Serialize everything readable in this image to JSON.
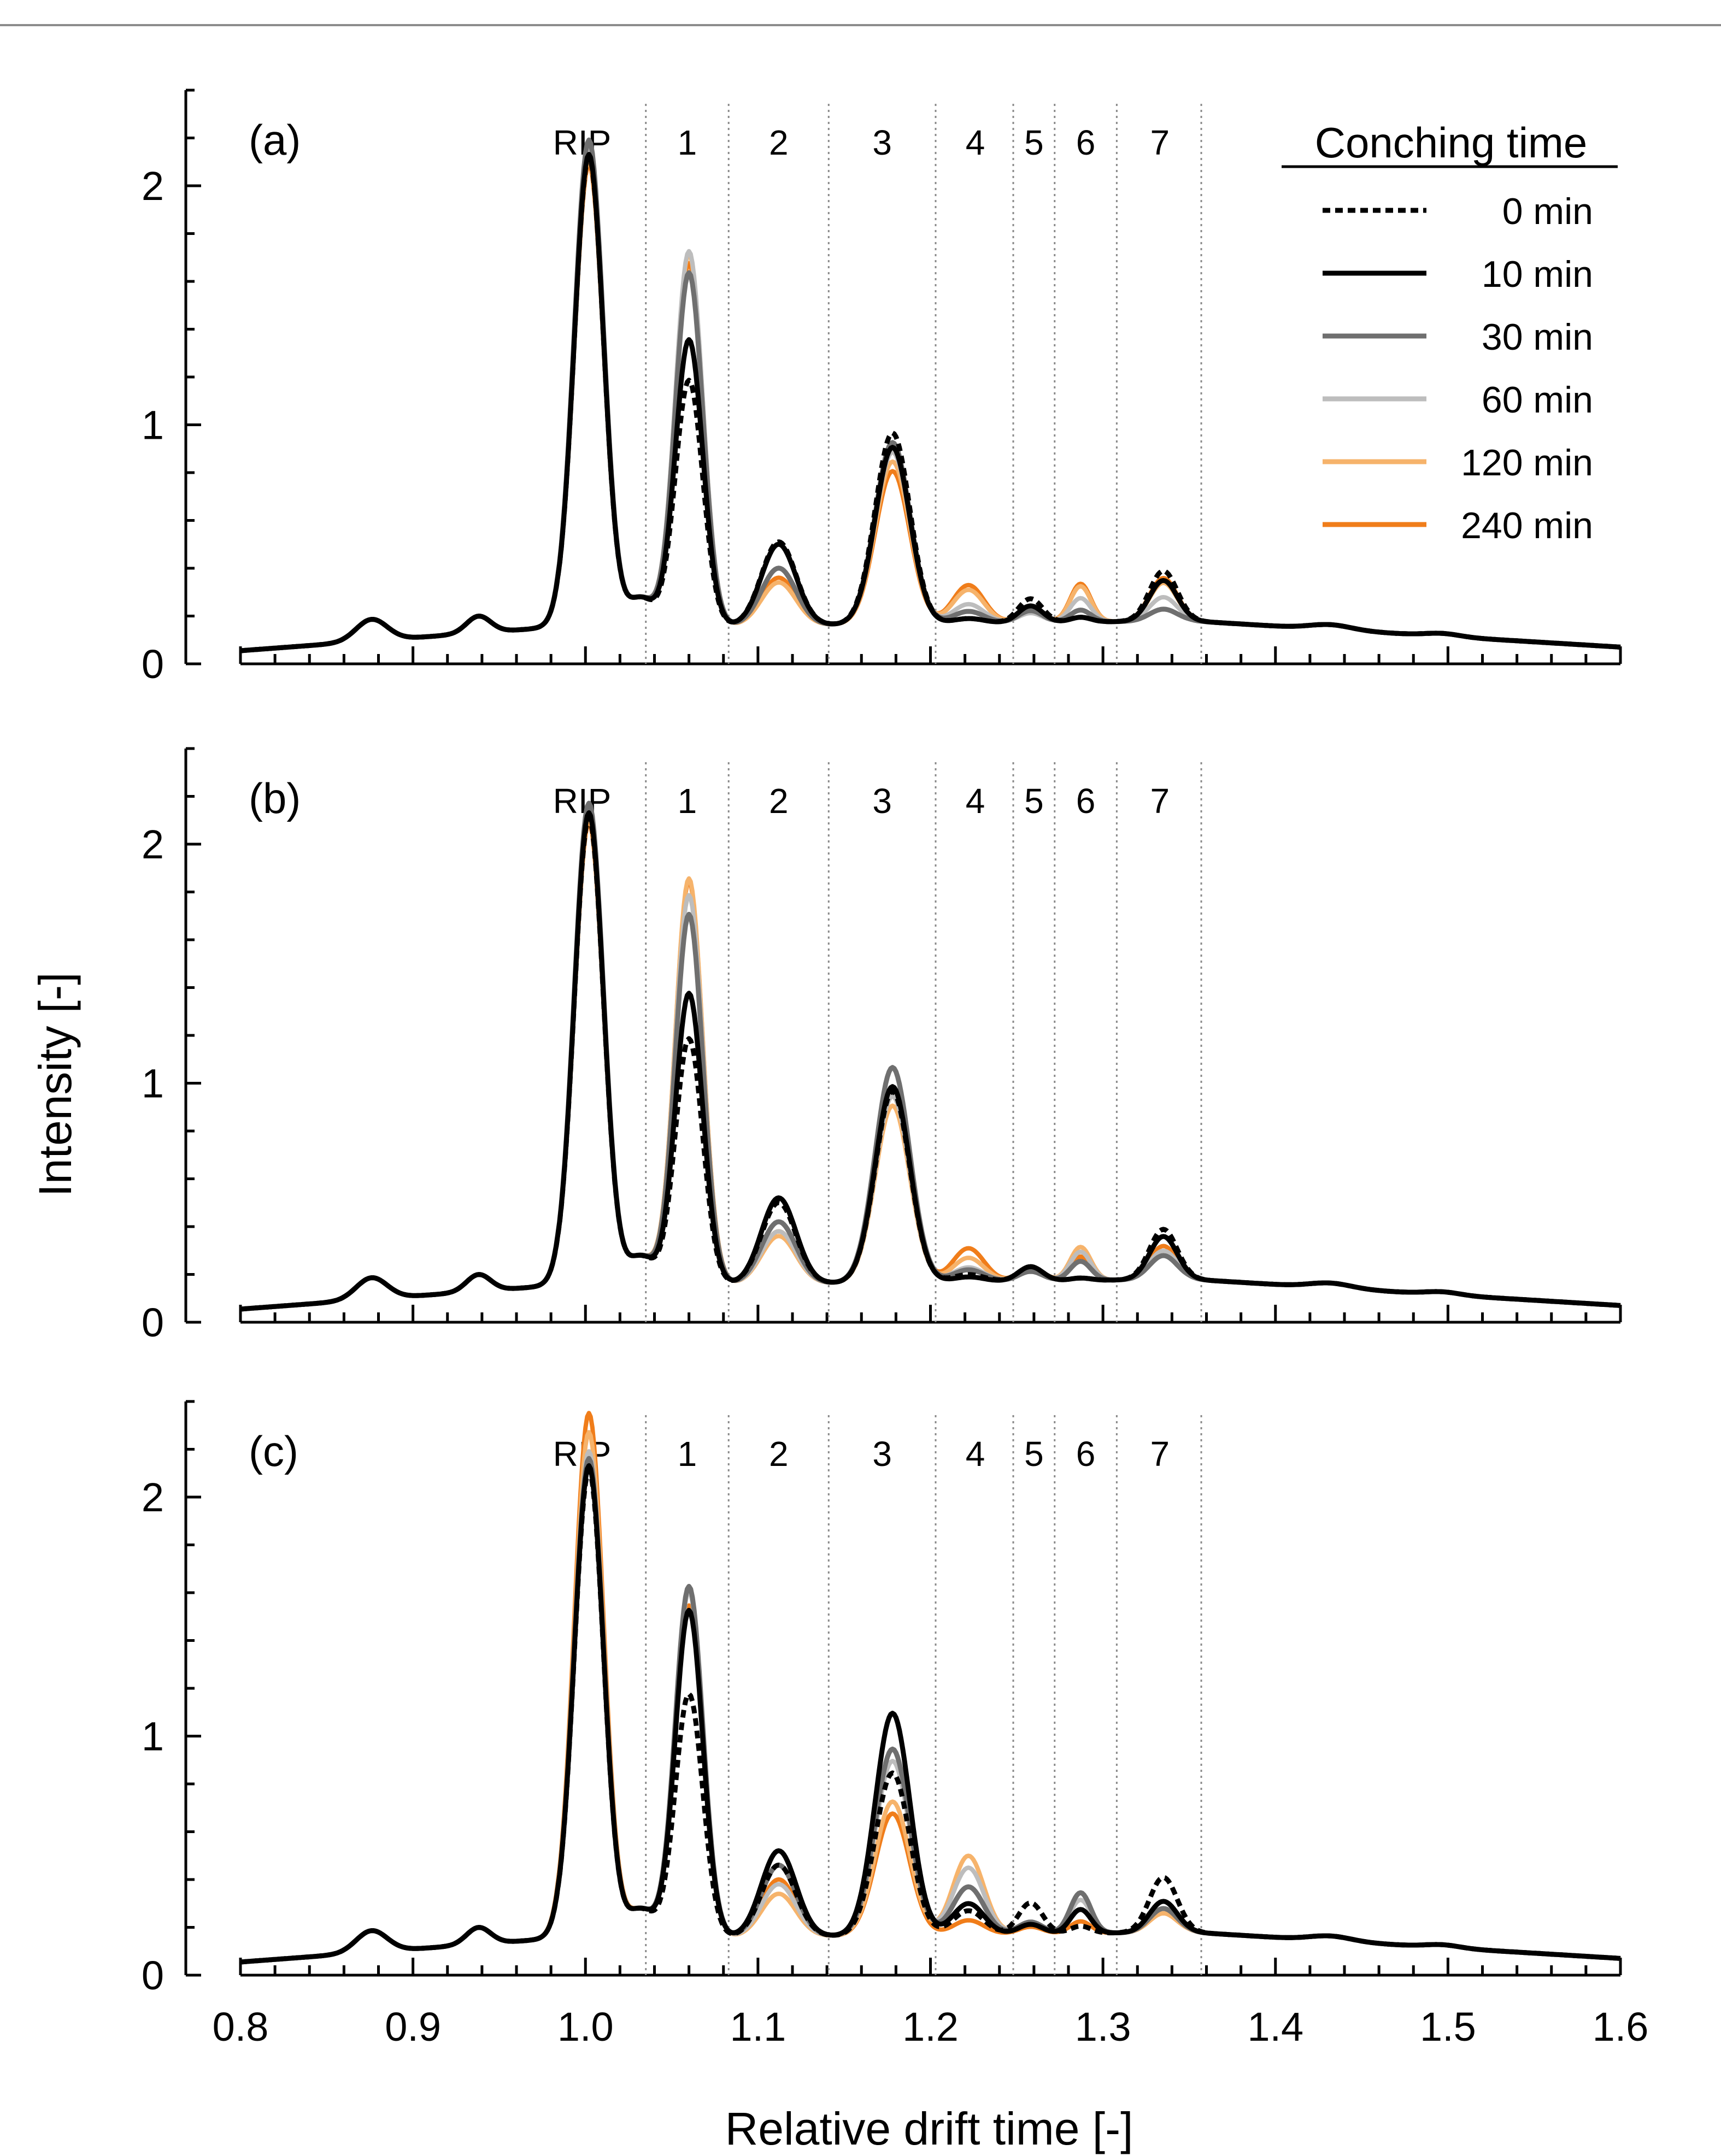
{
  "chart_data": {
    "type": "line",
    "xlabel": "Relative drift time [-]",
    "ylabel": "Intensity [-]",
    "xlim": [
      0.8,
      1.6
    ],
    "ylim": [
      0,
      2.4
    ],
    "x_ticks": [
      "0.8",
      "0.9",
      "1.0",
      "1.1",
      "1.2",
      "1.3",
      "1.4",
      "1.5",
      "1.6"
    ],
    "y_ticks": [
      "0",
      "1",
      "2"
    ],
    "legend_title": "Conching time",
    "legend_position": "top-right",
    "series": [
      {
        "name": "0 min",
        "color": "#000000",
        "dash": "dotted"
      },
      {
        "name": "10 min",
        "color": "#000000",
        "dash": "solid"
      },
      {
        "name": "30 min",
        "color": "#6f6f6f",
        "dash": "solid"
      },
      {
        "name": "60 min",
        "color": "#bdbdbd",
        "dash": "solid"
      },
      {
        "name": "120 min",
        "color": "#f6b36b",
        "dash": "solid"
      },
      {
        "name": "240 min",
        "color": "#f07d1a",
        "dash": "solid"
      }
    ],
    "region_boundaries": [
      1.035,
      1.083,
      1.141,
      1.203,
      1.248,
      1.272,
      1.308,
      1.357
    ],
    "region_labels": [
      {
        "label": "RIP",
        "x": 0.998
      },
      {
        "label": "1",
        "x": 1.059
      },
      {
        "label": "2",
        "x": 1.112
      },
      {
        "label": "3",
        "x": 1.172
      },
      {
        "label": "4",
        "x": 1.226
      },
      {
        "label": "5",
        "x": 1.26
      },
      {
        "label": "6",
        "x": 1.29
      },
      {
        "label": "7",
        "x": 1.333
      }
    ],
    "panels": [
      {
        "label": "(a)",
        "peak_heights": [
          [
            1.97,
            1.03,
            0.35,
            0.8,
            0.02,
            0.1,
            0.02,
            0.21
          ],
          [
            1.98,
            1.2,
            0.34,
            0.74,
            0.02,
            0.07,
            0.02,
            0.17
          ],
          [
            2.04,
            1.48,
            0.24,
            0.76,
            0.05,
            0.05,
            0.05,
            0.05
          ],
          [
            2.02,
            1.57,
            0.24,
            0.72,
            0.08,
            0.04,
            0.1,
            0.1
          ],
          [
            1.96,
            1.56,
            0.18,
            0.68,
            0.14,
            0.05,
            0.15,
            0.16
          ],
          [
            1.94,
            1.52,
            0.2,
            0.64,
            0.16,
            0.05,
            0.16,
            0.18
          ]
        ]
      },
      {
        "label": "(b)",
        "peak_heights": [
          [
            1.96,
            1.03,
            0.34,
            0.8,
            0.03,
            0.06,
            0.01,
            0.21
          ],
          [
            1.98,
            1.22,
            0.36,
            0.82,
            0.02,
            0.06,
            0.01,
            0.18
          ],
          [
            2.02,
            1.55,
            0.26,
            0.9,
            0.05,
            0.04,
            0.08,
            0.1
          ],
          [
            2.0,
            1.63,
            0.22,
            0.78,
            0.06,
            0.05,
            0.12,
            0.12
          ],
          [
            1.96,
            1.7,
            0.2,
            0.74,
            0.1,
            0.06,
            0.14,
            0.12
          ],
          [
            1.94,
            1.69,
            0.22,
            0.78,
            0.14,
            0.05,
            0.1,
            0.14
          ]
        ]
      },
      {
        "label": "(c)",
        "peak_heights": [
          [
            1.96,
            1.02,
            0.3,
            0.68,
            0.1,
            0.13,
            0.03,
            0.23
          ],
          [
            1.98,
            1.37,
            0.36,
            0.93,
            0.13,
            0.04,
            0.1,
            0.13
          ],
          [
            2.01,
            1.47,
            0.3,
            0.78,
            0.2,
            0.05,
            0.17,
            0.1
          ],
          [
            2.04,
            1.45,
            0.22,
            0.73,
            0.28,
            0.05,
            0.14,
            0.1
          ],
          [
            2.12,
            1.37,
            0.18,
            0.56,
            0.33,
            0.04,
            0.1,
            0.08
          ],
          [
            2.2,
            1.39,
            0.24,
            0.51,
            0.06,
            0.03,
            0.05,
            0.08
          ]
        ]
      }
    ]
  }
}
